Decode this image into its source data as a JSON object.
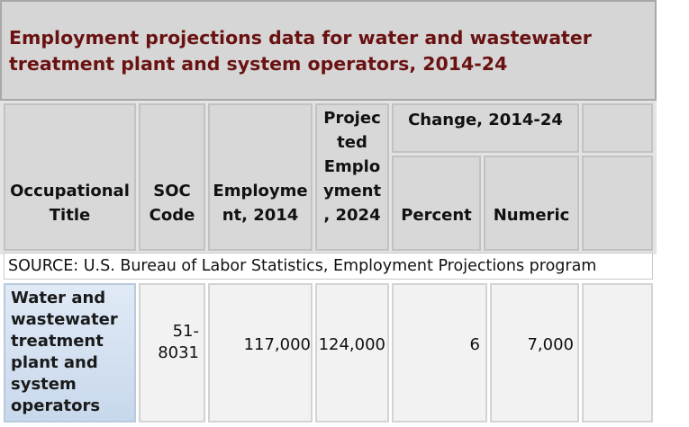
{
  "table": {
    "caption": "Employment projections data for water and wastewater treatment plant and system operators, 2014-24",
    "headers": {
      "occupational_title": "Occupational Title",
      "soc_code": "SOC Code",
      "employment_2014": "Employme nt, 2014",
      "projected_employment_2024": "Projec ted Emplo yment , 2024",
      "change_group": "Change, 2014-24",
      "percent": "Percent",
      "numeric": "Numeric"
    },
    "source": "SOURCE: U.S. Bureau of Labor Statistics, Employment Projections program",
    "rows": [
      {
        "occupational_title": "Water and wastewater treatment plant and system operators",
        "soc_code": "51-8031",
        "employment_2014": "117,000",
        "projected_employment_2024": "124,000",
        "percent": "6",
        "numeric": "7,000"
      }
    ]
  },
  "colors": {
    "caption_text": "#6a1212",
    "caption_bg": "#d6d6d6",
    "header_bg": "#d8d8d8",
    "stub_bg": "#d2e0f0"
  }
}
